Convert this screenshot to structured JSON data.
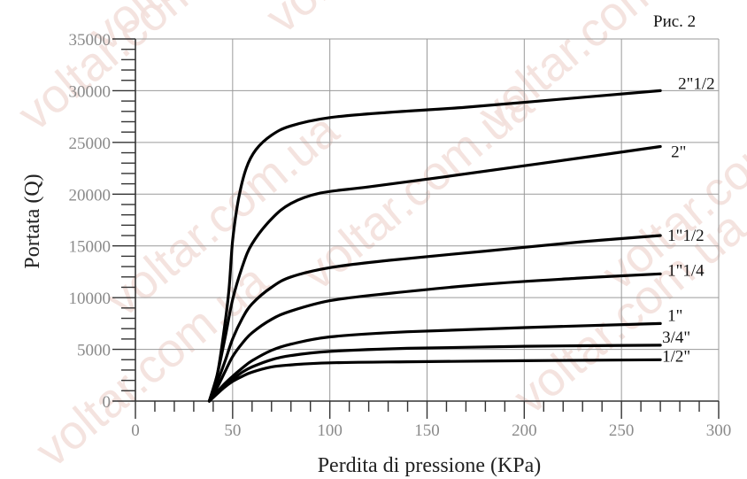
{
  "figure_label": "Рис. 2",
  "watermark": "voltar.com.ua",
  "chart_data": {
    "type": "line",
    "title": "",
    "xlabel": "Perdita di pressione (KPa)",
    "ylabel": "Portata (Q)",
    "xlim": [
      0,
      300
    ],
    "ylim": [
      0,
      35000
    ],
    "x_ticks": [
      0,
      50,
      100,
      150,
      200,
      250,
      300
    ],
    "y_ticks": [
      0,
      5000,
      10000,
      15000,
      20000,
      25000,
      30000,
      35000
    ],
    "x_tick_labels": [
      "0",
      "50",
      "100",
      "150",
      "200",
      "250",
      "300"
    ],
    "y_tick_labels": [
      "0",
      "5000",
      "10000",
      "15000",
      "20000",
      "25000",
      "30000",
      "35000"
    ],
    "grid": true,
    "legend": "labels at right end of each curve",
    "series": [
      {
        "name": "2\"1/2",
        "x": [
          38,
          42,
          45,
          48,
          50,
          53,
          57,
          62,
          70,
          80,
          100,
          130,
          170,
          220,
          270
        ],
        "y": [
          0,
          2500,
          6000,
          10500,
          15500,
          19500,
          22500,
          24300,
          25700,
          26600,
          27400,
          27900,
          28400,
          29200,
          30000
        ]
      },
      {
        "name": "2\"",
        "x": [
          38,
          42,
          46,
          50,
          55,
          60,
          70,
          80,
          95,
          120,
          160,
          210,
          270
        ],
        "y": [
          0,
          2500,
          6000,
          9800,
          13000,
          15200,
          17600,
          19100,
          20100,
          20700,
          21700,
          23000,
          24600
        ]
      },
      {
        "name": "1\"1/2",
        "x": [
          38,
          42,
          46,
          50,
          55,
          60,
          70,
          80,
          100,
          130,
          180,
          230,
          270
        ],
        "y": [
          0,
          1800,
          3800,
          6000,
          8000,
          9400,
          11000,
          12000,
          12900,
          13600,
          14500,
          15400,
          16000
        ]
      },
      {
        "name": "1\"1/4",
        "x": [
          38,
          42,
          46,
          50,
          55,
          60,
          70,
          80,
          100,
          130,
          180,
          230,
          270
        ],
        "y": [
          0,
          1300,
          2800,
          4300,
          5600,
          6600,
          7900,
          8700,
          9700,
          10400,
          11300,
          11900,
          12300
        ]
      },
      {
        "name": "1\"",
        "x": [
          38,
          45,
          50,
          55,
          60,
          70,
          80,
          100,
          140,
          200,
          270
        ],
        "y": [
          0,
          1500,
          2400,
          3200,
          3900,
          4900,
          5500,
          6200,
          6700,
          7100,
          7500
        ]
      },
      {
        "name": "3/4\"",
        "x": [
          38,
          45,
          50,
          55,
          60,
          70,
          80,
          100,
          140,
          200,
          270
        ],
        "y": [
          0,
          1300,
          2100,
          2800,
          3300,
          4000,
          4400,
          4800,
          5100,
          5300,
          5400
        ]
      },
      {
        "name": "1/2\"",
        "x": [
          38,
          45,
          50,
          55,
          60,
          70,
          80,
          100,
          140,
          200,
          270
        ],
        "y": [
          0,
          1200,
          1900,
          2400,
          2800,
          3300,
          3500,
          3700,
          3800,
          3900,
          4000
        ]
      }
    ]
  }
}
